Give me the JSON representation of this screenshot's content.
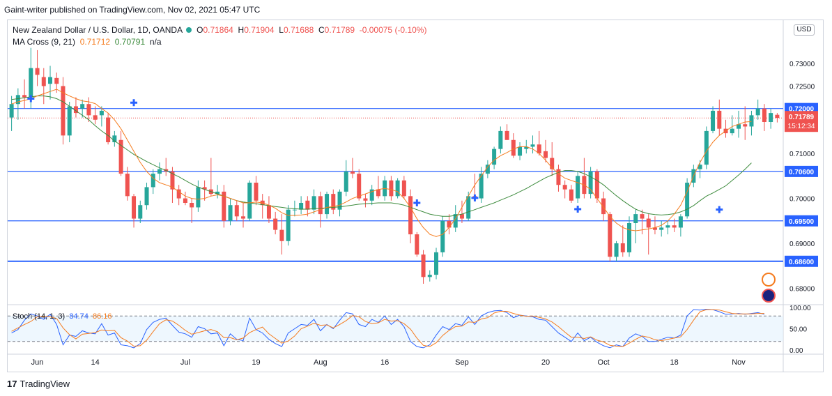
{
  "caption": "Gaint-writer published on TradingView.com, Nov 02, 2021 05:47 UTC",
  "legend": {
    "symbol": "New Zealand Dollar / U.S. Dollar, 1D, OANDA",
    "o_label": "O",
    "o": "0.71864",
    "h_label": "H",
    "h": "0.71904",
    "l_label": "L",
    "l": "0.71688",
    "c_label": "C",
    "c": "0.71789",
    "change": "-0.00075 (-0.10%)",
    "ma_name": "MA Cross (9, 21)",
    "ma_fast": "0.71712",
    "ma_slow": "0.70791",
    "ma_na": "n/a",
    "stoch_name": "Stoch (14, 1, 3)",
    "stoch_k": "84.74",
    "stoch_d": "86.16"
  },
  "currency_button": "USD",
  "brand": "TradingView",
  "brand_icon": "tradingview-logo-icon",
  "colors": {
    "up": "#26a69a",
    "down": "#ef5350",
    "ma_fast": "#f57c1f",
    "ma_slow": "#3d8b3d",
    "level": "#2962ff",
    "stoch_k": "#2962ff",
    "stoch_d": "#f57c1f"
  },
  "chart_data": {
    "type": "candlestick",
    "symbol": "NZDUSD",
    "timeframe": "1D",
    "ylim": [
      0.6765,
      0.7395
    ],
    "y_ticks": [
      "0.73000",
      "0.72500",
      "0.71000",
      "0.70000",
      "0.69000",
      "0.68000"
    ],
    "x_ticks": [
      {
        "label": "Jun",
        "index": 4
      },
      {
        "label": "14",
        "index": 13
      },
      {
        "label": "Jul",
        "index": 27
      },
      {
        "label": "19",
        "index": 38
      },
      {
        "label": "Aug",
        "index": 48
      },
      {
        "label": "16",
        "index": 58
      },
      {
        "label": "Sep",
        "index": 70
      },
      {
        "label": "20",
        "index": 83
      },
      {
        "label": "Oct",
        "index": 92
      },
      {
        "label": "18",
        "index": 103
      },
      {
        "label": "Nov",
        "index": 113
      }
    ],
    "horizontal_levels": [
      0.72,
      0.706,
      0.695,
      0.686
    ],
    "price_label": {
      "value": "0.71789",
      "time": "15:12:34"
    },
    "ohlc": [
      [
        0.718,
        0.7228,
        0.715,
        0.721
      ],
      [
        0.721,
        0.7245,
        0.7175,
        0.723
      ],
      [
        0.723,
        0.7265,
        0.72,
        0.7225
      ],
      [
        0.7225,
        0.7335,
        0.72,
        0.729
      ],
      [
        0.729,
        0.733,
        0.725,
        0.7275
      ],
      [
        0.727,
        0.729,
        0.721,
        0.725
      ],
      [
        0.7255,
        0.7295,
        0.722,
        0.727
      ],
      [
        0.7268,
        0.728,
        0.7235,
        0.7255
      ],
      [
        0.725,
        0.727,
        0.712,
        0.714
      ],
      [
        0.714,
        0.7215,
        0.7125,
        0.7205
      ],
      [
        0.7205,
        0.7225,
        0.718,
        0.719
      ],
      [
        0.72,
        0.722,
        0.718,
        0.721
      ],
      [
        0.721,
        0.7225,
        0.717,
        0.7185
      ],
      [
        0.7185,
        0.7205,
        0.7165,
        0.7175
      ],
      [
        0.7185,
        0.7205,
        0.716,
        0.7195
      ],
      [
        0.718,
        0.719,
        0.712,
        0.7125
      ],
      [
        0.7125,
        0.715,
        0.7115,
        0.714
      ],
      [
        0.713,
        0.715,
        0.705,
        0.7055
      ],
      [
        0.7055,
        0.707,
        0.6995,
        0.7005
      ],
      [
        0.7005,
        0.701,
        0.6935,
        0.6955
      ],
      [
        0.6955,
        0.6995,
        0.6945,
        0.6985
      ],
      [
        0.6985,
        0.7035,
        0.6975,
        0.7025
      ],
      [
        0.7025,
        0.7065,
        0.701,
        0.7055
      ],
      [
        0.7055,
        0.708,
        0.704,
        0.7065
      ],
      [
        0.7065,
        0.709,
        0.705,
        0.706
      ],
      [
        0.706,
        0.707,
        0.699,
        0.702
      ],
      [
        0.702,
        0.703,
        0.6985,
        0.7
      ],
      [
        0.7,
        0.7015,
        0.6985,
        0.699
      ],
      [
        0.699,
        0.7,
        0.6945,
        0.698
      ],
      [
        0.698,
        0.704,
        0.697,
        0.7025
      ],
      [
        0.7025,
        0.704,
        0.6995,
        0.702
      ],
      [
        0.702,
        0.709,
        0.7005,
        0.701
      ],
      [
        0.701,
        0.703,
        0.7,
        0.7015
      ],
      [
        0.7015,
        0.703,
        0.6935,
        0.695
      ],
      [
        0.695,
        0.7,
        0.694,
        0.6985
      ],
      [
        0.6985,
        0.6995,
        0.695,
        0.696
      ],
      [
        0.696,
        0.699,
        0.6935,
        0.6955
      ],
      [
        0.6955,
        0.704,
        0.695,
        0.7035
      ],
      [
        0.7035,
        0.705,
        0.6985,
        0.6995
      ],
      [
        0.6995,
        0.701,
        0.6955,
        0.6985
      ],
      [
        0.6985,
        0.7005,
        0.6945,
        0.6955
      ],
      [
        0.6955,
        0.697,
        0.692,
        0.693
      ],
      [
        0.693,
        0.6965,
        0.6875,
        0.6905
      ],
      [
        0.6905,
        0.6985,
        0.6895,
        0.6975
      ],
      [
        0.6975,
        0.6995,
        0.696,
        0.6975
      ],
      [
        0.6975,
        0.7005,
        0.6965,
        0.699
      ],
      [
        0.6995,
        0.7005,
        0.696,
        0.6975
      ],
      [
        0.6975,
        0.702,
        0.6965,
        0.7005
      ],
      [
        0.7005,
        0.7015,
        0.6935,
        0.6965
      ],
      [
        0.6965,
        0.7015,
        0.6955,
        0.701
      ],
      [
        0.701,
        0.702,
        0.6965,
        0.6975
      ],
      [
        0.6975,
        0.702,
        0.696,
        0.7015
      ],
      [
        0.7015,
        0.7085,
        0.7005,
        0.706
      ],
      [
        0.706,
        0.709,
        0.7045,
        0.7055
      ],
      [
        0.7055,
        0.7065,
        0.6995,
        0.7
      ],
      [
        0.7,
        0.701,
        0.698,
        0.6995
      ],
      [
        0.6995,
        0.703,
        0.6985,
        0.702
      ],
      [
        0.702,
        0.705,
        0.7,
        0.7005
      ],
      [
        0.7005,
        0.705,
        0.6995,
        0.704
      ],
      [
        0.704,
        0.705,
        0.6995,
        0.7005
      ],
      [
        0.7005,
        0.7045,
        0.7,
        0.704
      ],
      [
        0.704,
        0.705,
        0.7,
        0.7005
      ],
      [
        0.7005,
        0.702,
        0.69,
        0.692
      ],
      [
        0.692,
        0.6925,
        0.687,
        0.6875
      ],
      [
        0.6875,
        0.6885,
        0.681,
        0.6825
      ],
      [
        0.6825,
        0.684,
        0.6815,
        0.683
      ],
      [
        0.683,
        0.689,
        0.682,
        0.688
      ],
      [
        0.688,
        0.696,
        0.687,
        0.695
      ],
      [
        0.695,
        0.6965,
        0.692,
        0.6935
      ],
      [
        0.6935,
        0.6985,
        0.6925,
        0.6965
      ],
      [
        0.6965,
        0.6995,
        0.6945,
        0.6955
      ],
      [
        0.6955,
        0.7015,
        0.695,
        0.7005
      ],
      [
        0.7005,
        0.7055,
        0.6995,
        0.7
      ],
      [
        0.7,
        0.707,
        0.699,
        0.7055
      ],
      [
        0.7055,
        0.7085,
        0.7045,
        0.7075
      ],
      [
        0.7075,
        0.7115,
        0.7065,
        0.711
      ],
      [
        0.711,
        0.716,
        0.71,
        0.715
      ],
      [
        0.715,
        0.7165,
        0.713,
        0.713
      ],
      [
        0.713,
        0.7145,
        0.709,
        0.7095
      ],
      [
        0.7095,
        0.7125,
        0.7085,
        0.7115
      ],
      [
        0.711,
        0.713,
        0.71,
        0.7115
      ],
      [
        0.7115,
        0.714,
        0.71,
        0.712
      ],
      [
        0.712,
        0.715,
        0.7095,
        0.71
      ],
      [
        0.7105,
        0.713,
        0.708,
        0.709
      ],
      [
        0.709,
        0.7125,
        0.705,
        0.7065
      ],
      [
        0.7065,
        0.7075,
        0.7015,
        0.703
      ],
      [
        0.703,
        0.704,
        0.7,
        0.702
      ],
      [
        0.702,
        0.703,
        0.699,
        0.6995
      ],
      [
        0.7,
        0.706,
        0.699,
        0.705
      ],
      [
        0.705,
        0.709,
        0.7,
        0.701
      ],
      [
        0.701,
        0.707,
        0.7,
        0.706
      ],
      [
        0.706,
        0.7065,
        0.699,
        0.7
      ],
      [
        0.7,
        0.7015,
        0.695,
        0.6965
      ],
      [
        0.6965,
        0.697,
        0.686,
        0.687
      ],
      [
        0.687,
        0.6905,
        0.686,
        0.69
      ],
      [
        0.69,
        0.694,
        0.687,
        0.688
      ],
      [
        0.688,
        0.696,
        0.687,
        0.6945
      ],
      [
        0.6945,
        0.6975,
        0.69,
        0.6965
      ],
      [
        0.6965,
        0.6975,
        0.692,
        0.6955
      ],
      [
        0.6955,
        0.6965,
        0.6875,
        0.6935
      ],
      [
        0.6935,
        0.696,
        0.692,
        0.693
      ],
      [
        0.693,
        0.695,
        0.6915,
        0.6935
      ],
      [
        0.6935,
        0.695,
        0.692,
        0.694
      ],
      [
        0.694,
        0.6955,
        0.6925,
        0.6935
      ],
      [
        0.6935,
        0.6965,
        0.6915,
        0.696
      ],
      [
        0.696,
        0.7045,
        0.6955,
        0.7035
      ],
      [
        0.7035,
        0.7075,
        0.7025,
        0.7065
      ],
      [
        0.7065,
        0.7085,
        0.7045,
        0.7075
      ],
      [
        0.7075,
        0.716,
        0.7065,
        0.715
      ],
      [
        0.715,
        0.7205,
        0.7145,
        0.7195
      ],
      [
        0.7195,
        0.722,
        0.714,
        0.7155
      ],
      [
        0.7155,
        0.7175,
        0.7135,
        0.7145
      ],
      [
        0.7145,
        0.7185,
        0.714,
        0.7155
      ],
      [
        0.7155,
        0.7195,
        0.7135,
        0.7165
      ],
      [
        0.7165,
        0.7205,
        0.713,
        0.716
      ],
      [
        0.716,
        0.7195,
        0.714,
        0.7185
      ],
      [
        0.7185,
        0.722,
        0.7175,
        0.72
      ],
      [
        0.72,
        0.721,
        0.715,
        0.717
      ],
      [
        0.717,
        0.72,
        0.7155,
        0.719
      ],
      [
        0.7186,
        0.719,
        0.7169,
        0.7179
      ]
    ],
    "ma_fast_9": [
      0.721,
      0.7215,
      0.7218,
      0.7222,
      0.7228,
      0.7233,
      0.7238,
      0.7243,
      0.7235,
      0.7228,
      0.7222,
      0.7217,
      0.7215,
      0.7211,
      0.72,
      0.719,
      0.7175,
      0.7155,
      0.713,
      0.7105,
      0.708,
      0.706,
      0.7045,
      0.7035,
      0.703,
      0.7025,
      0.7015,
      0.7005,
      0.7,
      0.6998,
      0.7,
      0.7005,
      0.7008,
      0.7005,
      0.7,
      0.6995,
      0.699,
      0.699,
      0.6992,
      0.699,
      0.6985,
      0.6978,
      0.6968,
      0.6962,
      0.6962,
      0.6963,
      0.6965,
      0.697,
      0.6975,
      0.698,
      0.6982,
      0.6985,
      0.6992,
      0.7,
      0.7005,
      0.701,
      0.7015,
      0.702,
      0.7022,
      0.702,
      0.7015,
      0.7,
      0.698,
      0.6955,
      0.6935,
      0.692,
      0.6915,
      0.692,
      0.6935,
      0.6955,
      0.698,
      0.7005,
      0.703,
      0.705,
      0.707,
      0.7085,
      0.7095,
      0.7102,
      0.711,
      0.7115,
      0.7115,
      0.711,
      0.71,
      0.7085,
      0.7068,
      0.7055,
      0.7045,
      0.704,
      0.7035,
      0.703,
      0.702,
      0.7,
      0.698,
      0.696,
      0.6945,
      0.6935,
      0.693,
      0.6928,
      0.693,
      0.6932,
      0.6935,
      0.694,
      0.695,
      0.6965,
      0.6985,
      0.7015,
      0.705,
      0.708,
      0.7105,
      0.7125,
      0.714,
      0.715,
      0.716,
      0.7165,
      0.717,
      0.7171
    ],
    "ma_slow_21": [
      0.722,
      0.7222,
      0.7224,
      0.7226,
      0.7228,
      0.7228,
      0.7226,
      0.7222,
      0.7215,
      0.7205,
      0.7195,
      0.7185,
      0.7175,
      0.7162,
      0.715,
      0.714,
      0.7128,
      0.7118,
      0.7108,
      0.7098,
      0.709,
      0.7082,
      0.7075,
      0.7068,
      0.7062,
      0.7055,
      0.7048,
      0.704,
      0.7032,
      0.7025,
      0.702,
      0.7015,
      0.701,
      0.7005,
      0.7,
      0.6995,
      0.6992,
      0.699,
      0.6988,
      0.6986,
      0.6984,
      0.6982,
      0.698,
      0.6978,
      0.6977,
      0.6976,
      0.6976,
      0.6977,
      0.6978,
      0.6979,
      0.698,
      0.6981,
      0.6983,
      0.6985,
      0.6987,
      0.6988,
      0.6989,
      0.699,
      0.699,
      0.699,
      0.6988,
      0.6985,
      0.698,
      0.6975,
      0.697,
      0.6965,
      0.6962,
      0.696,
      0.696,
      0.6962,
      0.6965,
      0.697,
      0.6975,
      0.698,
      0.6985,
      0.699,
      0.6996,
      0.7002,
      0.7008,
      0.7015,
      0.7022,
      0.703,
      0.7038,
      0.7046,
      0.7052,
      0.7058,
      0.7062,
      0.7062,
      0.706,
      0.7055,
      0.7048,
      0.704,
      0.703,
      0.7018,
      0.7006,
      0.6995,
      0.6985,
      0.6976,
      0.697,
      0.6966,
      0.6964,
      0.6963,
      0.6964,
      0.6966,
      0.697,
      0.6976,
      0.6984,
      0.6995,
      0.7005,
      0.7012,
      0.702,
      0.7028,
      0.704,
      0.7052,
      0.7065,
      0.7079
    ],
    "crosses": [
      {
        "index": 3,
        "value": 0.7222
      },
      {
        "index": 19,
        "value": 0.7213
      },
      {
        "index": 63,
        "value": 0.699
      },
      {
        "index": 72,
        "value": 0.7001
      },
      {
        "index": 110,
        "value": 0.6975
      },
      {
        "index": 88,
        "value": 0.6976
      }
    ],
    "stoch": {
      "ylim": [
        -5,
        105
      ],
      "levels": [
        80,
        20
      ],
      "y_ticks": [
        "100.00",
        "50.00",
        "0.00"
      ],
      "k": [
        40,
        48,
        70,
        85,
        80,
        72,
        84,
        60,
        12,
        35,
        32,
        45,
        40,
        38,
        62,
        35,
        40,
        12,
        10,
        5,
        15,
        48,
        65,
        72,
        75,
        58,
        42,
        38,
        30,
        55,
        50,
        38,
        40,
        10,
        38,
        25,
        22,
        75,
        48,
        40,
        25,
        15,
        8,
        40,
        50,
        60,
        58,
        72,
        45,
        60,
        50,
        70,
        88,
        85,
        60,
        55,
        72,
        65,
        80,
        60,
        72,
        55,
        20,
        8,
        5,
        12,
        35,
        55,
        48,
        62,
        58,
        78,
        60,
        80,
        88,
        92,
        93,
        88,
        76,
        82,
        80,
        78,
        72,
        70,
        55,
        40,
        30,
        20,
        40,
        22,
        30,
        18,
        10,
        5,
        12,
        8,
        28,
        38,
        32,
        20,
        20,
        25,
        30,
        28,
        35,
        80,
        95,
        94,
        96,
        95,
        90,
        84,
        85,
        86,
        84,
        86,
        88,
        84
      ],
      "d": [
        44,
        52,
        60,
        67,
        78,
        79,
        78,
        74,
        52,
        36,
        26,
        37,
        39,
        41,
        47,
        45,
        46,
        29,
        21,
        9,
        10,
        23,
        43,
        62,
        71,
        68,
        58,
        46,
        37,
        41,
        45,
        48,
        43,
        29,
        29,
        24,
        28,
        41,
        48,
        54,
        38,
        27,
        16,
        21,
        33,
        50,
        56,
        63,
        58,
        59,
        52,
        60,
        69,
        81,
        78,
        67,
        62,
        64,
        72,
        68,
        69,
        62,
        49,
        28,
        11,
        8,
        17,
        34,
        46,
        55,
        56,
        66,
        65,
        73,
        76,
        87,
        91,
        91,
        86,
        82,
        79,
        80,
        77,
        73,
        66,
        55,
        42,
        30,
        30,
        27,
        31,
        23,
        19,
        11,
        9,
        8,
        16,
        25,
        33,
        30,
        24,
        22,
        25,
        28,
        31,
        48,
        70,
        90,
        95,
        95,
        94,
        90,
        86,
        85,
        85,
        85,
        86,
        86
      ]
    }
  }
}
